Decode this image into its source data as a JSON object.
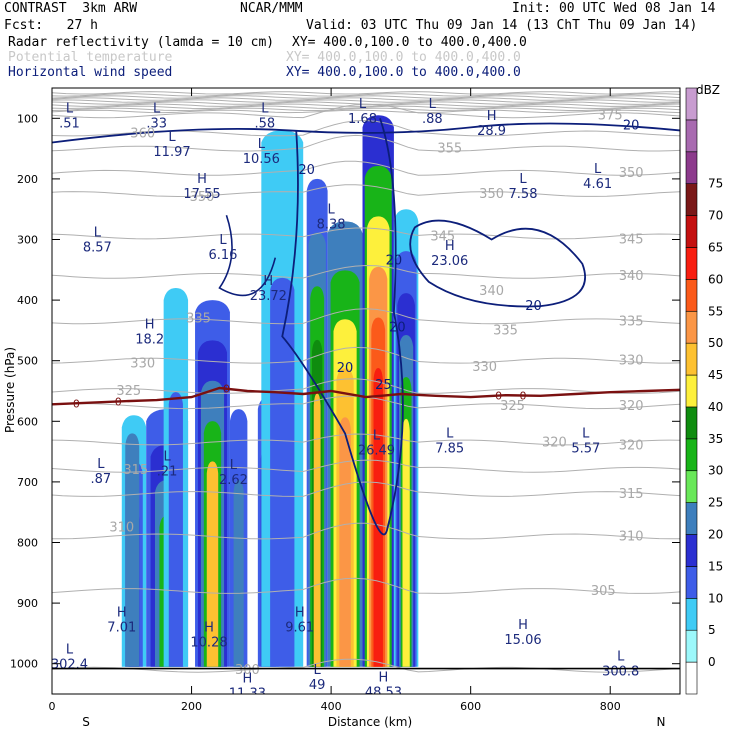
{
  "header": {
    "model": "CONTRAST  3km ARW",
    "org": "NCAR/MMM",
    "init": "Init: 00 UTC Wed 08 Jan 14",
    "fcst": "Fcst:   27 h",
    "valid": "Valid: 03 UTC Thu 09 Jan 14 (13 ChT Thu 09 Jan 14)",
    "field1": "Radar reflectivity (lamda = 10 cm)",
    "xy1": "XY= 400.0,100.0 to 400.0,400.0",
    "field2": "Potential temperature",
    "xy2": "XY= 400.0,100.0 to 400.0,400.0",
    "field3": "Horizontal wind speed",
    "xy3": "XY= 400.0,100.0 to 400.0,400.0"
  },
  "colors": {
    "navy": "#0c1e7a",
    "freezing": "#7a1010",
    "theta": "#b0b0b0",
    "dbz": [
      "#ffffff",
      "#9cf8fb",
      "#3fcbf5",
      "#3e5de8",
      "#2b2fd1",
      "#3e7fbd",
      "#69e859",
      "#18b418",
      "#0f8c0f",
      "#fdf03c",
      "#fdc131",
      "#fb9646",
      "#fb5a1a",
      "#f81e10",
      "#c41010",
      "#7a1818",
      "#8c3a8c",
      "#a86ab0",
      "#c89cd0"
    ]
  },
  "chart_data": {
    "type": "heatmap",
    "xlabel": "Distance (km)",
    "ylabel": "Pressure (hPa)",
    "xlim": [
      0,
      900
    ],
    "ylim": [
      1050,
      50
    ],
    "x_ticks": [
      0,
      200,
      400,
      600,
      800
    ],
    "y_ticks": [
      100,
      200,
      300,
      400,
      500,
      600,
      700,
      800,
      900,
      1000
    ],
    "x_ticks_text": [
      "0",
      "200",
      "400",
      "600",
      "800"
    ],
    "y_ticks_text": [
      "100",
      "200",
      "300",
      "400",
      "500",
      "600",
      "700",
      "800",
      "900",
      "1000"
    ],
    "left_label": "S",
    "right_label": "N",
    "colorbar": {
      "title": "dBZ",
      "levels": [
        0,
        5,
        10,
        15,
        20,
        25,
        30,
        35,
        40,
        45,
        50,
        55,
        60,
        65,
        70,
        75
      ],
      "levels_text": [
        "0",
        "5",
        "10",
        "15",
        "20",
        "25",
        "30",
        "35",
        "40",
        "45",
        "50",
        "55",
        "60",
        "65",
        "70",
        "75"
      ]
    },
    "reflectivity_columns": [
      {
        "x0": 100,
        "x1": 135,
        "p_top": 590,
        "levels": [
          5,
          10,
          15
        ]
      },
      {
        "x0": 105,
        "x1": 125,
        "p_top": 620,
        "levels": [
          20
        ]
      },
      {
        "x0": 135,
        "x1": 195,
        "p_top": 580,
        "levels": [
          10,
          15,
          20,
          30
        ]
      },
      {
        "x0": 160,
        "x1": 195,
        "p_top": 380,
        "levels": [
          5,
          10
        ]
      },
      {
        "x0": 205,
        "x1": 255,
        "p_top": 400,
        "levels": [
          10,
          15,
          20,
          30,
          45
        ]
      },
      {
        "x0": 255,
        "x1": 280,
        "p_top": 580,
        "levels": [
          10,
          20
        ]
      },
      {
        "x0": 295,
        "x1": 325,
        "p_top": 560,
        "levels": [
          10,
          15,
          20
        ]
      },
      {
        "x0": 300,
        "x1": 360,
        "p_top": 120,
        "levels": [
          5,
          10
        ]
      },
      {
        "x0": 365,
        "x1": 395,
        "p_top": 200,
        "levels": [
          10,
          20,
          30,
          35,
          45
        ]
      },
      {
        "x0": 395,
        "x1": 445,
        "p_top": 270,
        "levels": [
          20,
          30,
          40,
          45,
          50
        ]
      },
      {
        "x0": 445,
        "x1": 490,
        "p_top": 95,
        "levels": [
          15,
          30,
          40,
          50,
          55,
          60
        ]
      },
      {
        "x0": 490,
        "x1": 525,
        "p_top": 250,
        "levels": [
          5,
          10,
          15,
          20,
          30,
          40
        ]
      }
    ],
    "freezing_level": {
      "label": "0",
      "x": [
        0,
        100,
        150,
        200,
        240,
        280,
        320,
        360,
        400,
        450,
        500,
        550,
        600,
        650,
        700,
        750,
        800,
        850,
        900
      ],
      "p": [
        572,
        567,
        565,
        560,
        545,
        550,
        552,
        555,
        550,
        560,
        555,
        558,
        560,
        557,
        558,
        555,
        552,
        550,
        548
      ]
    },
    "theta_labels": [
      {
        "text": "375",
        "x": 800,
        "p": 95
      },
      {
        "text": "360",
        "x": 130,
        "p": 125
      },
      {
        "text": "355",
        "x": 570,
        "p": 150
      },
      {
        "text": "350",
        "x": 830,
        "p": 190
      },
      {
        "text": "350",
        "x": 630,
        "p": 225
      },
      {
        "text": "350",
        "x": 215,
        "p": 230
      },
      {
        "text": "345",
        "x": 830,
        "p": 300
      },
      {
        "text": "345",
        "x": 560,
        "p": 295
      },
      {
        "text": "340",
        "x": 830,
        "p": 360
      },
      {
        "text": "340",
        "x": 630,
        "p": 385
      },
      {
        "text": "335",
        "x": 830,
        "p": 435
      },
      {
        "text": "335",
        "x": 210,
        "p": 430
      },
      {
        "text": "335",
        "x": 650,
        "p": 450
      },
      {
        "text": "330",
        "x": 830,
        "p": 500
      },
      {
        "text": "330",
        "x": 130,
        "p": 505
      },
      {
        "text": "330",
        "x": 620,
        "p": 510
      },
      {
        "text": "325",
        "x": 110,
        "p": 550
      },
      {
        "text": "325",
        "x": 660,
        "p": 575
      },
      {
        "text": "320",
        "x": 830,
        "p": 575
      },
      {
        "text": "320",
        "x": 720,
        "p": 635
      },
      {
        "text": "320",
        "x": 830,
        "p": 640
      },
      {
        "text": "315",
        "x": 120,
        "p": 680
      },
      {
        "text": "315",
        "x": 830,
        "p": 720
      },
      {
        "text": "310",
        "x": 100,
        "p": 775
      },
      {
        "text": "310",
        "x": 830,
        "p": 790
      },
      {
        "text": "305",
        "x": 790,
        "p": 880
      },
      {
        "text": "300",
        "x": 280,
        "p": 1010
      }
    ],
    "hl_labels": [
      {
        "letter": "L",
        "value": ".51",
        "x": 25,
        "p": 95
      },
      {
        "letter": "L",
        "value": ".33",
        "x": 150,
        "p": 95
      },
      {
        "letter": "L",
        "value": ".58",
        "x": 305,
        "p": 95
      },
      {
        "letter": "L",
        "value": "1.68",
        "x": 445,
        "p": 88
      },
      {
        "letter": "L",
        "value": ".88",
        "x": 545,
        "p": 88
      },
      {
        "letter": "H",
        "value": "28.9",
        "x": 630,
        "p": 108
      },
      {
        "letter": "L",
        "value": "11.97",
        "x": 172,
        "p": 142
      },
      {
        "letter": "L",
        "value": "10.56",
        "x": 300,
        "p": 154
      },
      {
        "letter": "L",
        "value": "7.58",
        "x": 675,
        "p": 212
      },
      {
        "letter": "L",
        "value": "4.61",
        "x": 782,
        "p": 195
      },
      {
        "letter": "H",
        "value": "17.55",
        "x": 215,
        "p": 212
      },
      {
        "letter": "L",
        "value": "8.38",
        "x": 400,
        "p": 262
      },
      {
        "letter": "L",
        "value": "8.57",
        "x": 65,
        "p": 300
      },
      {
        "letter": "L",
        "value": "6.16",
        "x": 245,
        "p": 312
      },
      {
        "letter": "H",
        "value": "23.06",
        "x": 570,
        "p": 322
      },
      {
        "letter": "H",
        "value": "23.72",
        "x": 310,
        "p": 380
      },
      {
        "letter": "H",
        "value": "18.2",
        "x": 140,
        "p": 452
      },
      {
        "letter": "L",
        "value": "7.85",
        "x": 570,
        "p": 632
      },
      {
        "letter": "L",
        "value": "5.57",
        "x": 765,
        "p": 632
      },
      {
        "letter": "L",
        "value": ".87",
        "x": 70,
        "p": 682
      },
      {
        "letter": "L",
        "value": ".21",
        "x": 165,
        "p": 670
      },
      {
        "letter": "L",
        "value": "2.62",
        "x": 260,
        "p": 684
      },
      {
        "letter": "L",
        "value": "26.49",
        "x": 465,
        "p": 635
      },
      {
        "letter": "H",
        "value": "7.01",
        "x": 100,
        "p": 927
      },
      {
        "letter": "H",
        "value": "10.28",
        "x": 225,
        "p": 952
      },
      {
        "letter": "H",
        "value": "9.61",
        "x": 355,
        "p": 927
      },
      {
        "letter": "H",
        "value": "15.06",
        "x": 675,
        "p": 948
      },
      {
        "letter": "L",
        "value": "302.4",
        "x": 25,
        "p": 988
      },
      {
        "letter": "L",
        "value": "300.8",
        "x": 815,
        "p": 1000
      },
      {
        "letter": "L",
        "value": "49",
        "x": 380,
        "p": 1022
      },
      {
        "letter": "H",
        "value": "11.33",
        "x": 280,
        "p": 1036
      },
      {
        "letter": "H",
        "value": "48.53",
        "x": 475,
        "p": 1034
      }
    ],
    "wind_labels": [
      {
        "text": "20",
        "x": 830,
        "p": 112
      },
      {
        "text": "20",
        "x": 365,
        "p": 185
      },
      {
        "text": "20",
        "x": 490,
        "p": 335
      },
      {
        "text": "20",
        "x": 690,
        "p": 410
      },
      {
        "text": "20",
        "x": 495,
        "p": 445
      },
      {
        "text": "20",
        "x": 420,
        "p": 512
      },
      {
        "text": "25",
        "x": 475,
        "p": 540
      }
    ]
  }
}
